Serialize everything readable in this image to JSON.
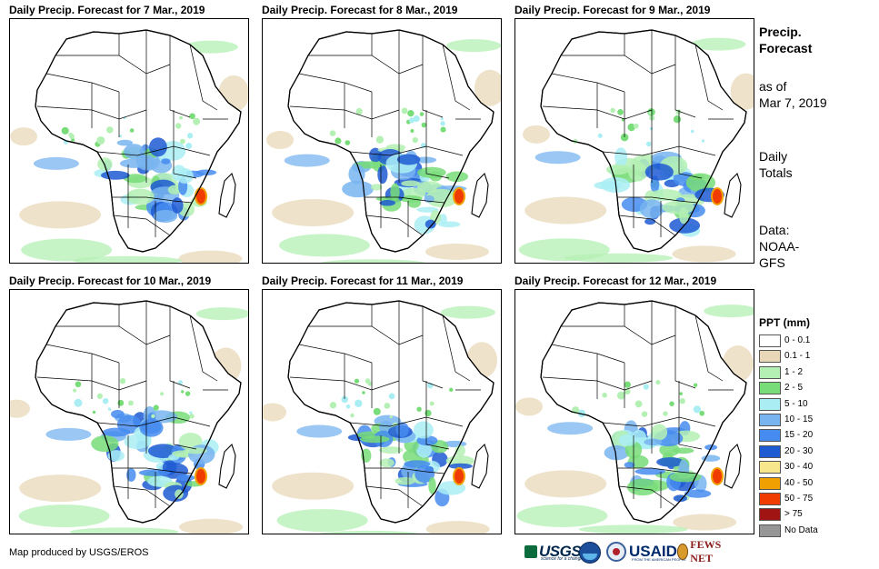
{
  "panels": [
    {
      "title": "Daily Precip. Forecast for 7 Mar., 2019",
      "day": 7
    },
    {
      "title": "Daily Precip. Forecast for 8 Mar., 2019",
      "day": 8
    },
    {
      "title": "Daily Precip. Forecast for 9 Mar., 2019",
      "day": 9
    },
    {
      "title": "Daily Precip. Forecast for 10 Mar., 2019",
      "day": 10
    },
    {
      "title": "Daily Precip. Forecast for 11 Mar., 2019",
      "day": 11
    },
    {
      "title": "Daily Precip. Forecast for 12 Mar., 2019",
      "day": 12
    }
  ],
  "side": {
    "heading_line1": "Precip.",
    "heading_line2": "Forecast",
    "asof_line1": "as of",
    "asof_line2": "Mar 7, 2019",
    "totals_line1": "Daily",
    "totals_line2": "Totals",
    "data_line1": "Data:",
    "data_line2": "NOAA-",
    "data_line3": "GFS"
  },
  "legend": {
    "title": "PPT (mm)",
    "items": [
      {
        "label": "0 - 0.1",
        "color": "#ffffff"
      },
      {
        "label": "0.1 - 1",
        "color": "#e8d8b8"
      },
      {
        "label": "1 - 2",
        "color": "#b4f0b4"
      },
      {
        "label": "2 - 5",
        "color": "#78dc78"
      },
      {
        "label": "5 - 10",
        "color": "#aaeef4"
      },
      {
        "label": "10 - 15",
        "color": "#78b4f0"
      },
      {
        "label": "15 - 20",
        "color": "#468cf0"
      },
      {
        "label": "20 - 30",
        "color": "#1e5ad2"
      },
      {
        "label": "30 - 40",
        "color": "#f8e68c"
      },
      {
        "label": "40 - 50",
        "color": "#f0a000"
      },
      {
        "label": "50 - 75",
        "color": "#f03c00"
      },
      {
        "label": "> 75",
        "color": "#a01414"
      },
      {
        "label": "No Data",
        "color": "#969696"
      }
    ]
  },
  "credit": "Map produced by USGS/EROS",
  "logos": {
    "usgs": "USGS",
    "usgs_tagline": "science for a changing world",
    "usaid": "USAID",
    "usaid_tagline": "FROM THE AMERICAN PEOPLE",
    "fews": "FEWS NET"
  }
}
